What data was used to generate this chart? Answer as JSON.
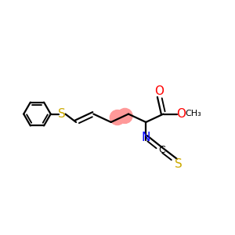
{
  "bg_color": "#ffffff",
  "bond_color": "#000000",
  "figsize": [
    3.0,
    3.0
  ],
  "dpi": 100,
  "S_color": "#ccaa00",
  "O_color": "#ff0000",
  "N_color": "#0000ff",
  "highlight_color": "#ff9999",
  "lw": 1.6,
  "xlim": [
    0,
    10
  ],
  "ylim": [
    1,
    9
  ]
}
